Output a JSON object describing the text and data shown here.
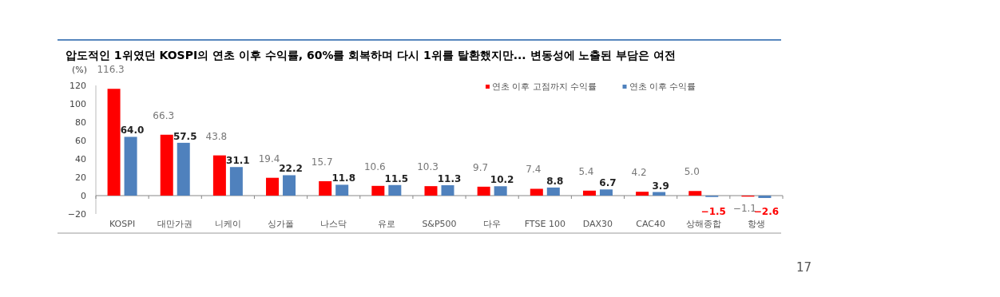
{
  "chart_data": {
    "type": "bar",
    "title": "압도적인 1위였던 KOSPI의 연초 이후 수익률, 60%를 회복하며 다시 1위를 탈환했지만... 변동성에 노출된 부담은 여전",
    "ylabel": "(%)",
    "categories": [
      "KOSPI",
      "대만가권",
      "니케이",
      "싱가폴",
      "나스닥",
      "유로",
      "S&P500",
      "다우",
      "FTSE 100",
      "DAX30",
      "CAC40",
      "상해종합",
      "항생"
    ],
    "series": [
      {
        "name": "연초 이후 고점까지 수익률",
        "color": "#ff0000",
        "values": [
          116.3,
          66.3,
          43.8,
          19.4,
          15.7,
          10.6,
          10.3,
          9.7,
          7.4,
          5.4,
          4.2,
          5.0,
          -1.1
        ],
        "value_labels": [
          "116.3",
          "66.3",
          "43.8",
          "19.4",
          "15.7",
          "10.6",
          "10.3",
          "9.7",
          "7.4",
          "5.4",
          "4.2",
          "5.0",
          "−1.1"
        ]
      },
      {
        "name": "연초 이후 수익률",
        "color": "#4f81bd",
        "values": [
          64.0,
          57.5,
          31.1,
          22.2,
          11.8,
          11.5,
          11.3,
          10.2,
          8.8,
          6.7,
          3.9,
          -1.5,
          -2.6
        ],
        "value_labels": [
          "64.0",
          "57.5",
          "31.1",
          "22.2",
          "11.8",
          "11.5",
          "11.3",
          "10.2",
          "8.8",
          "6.7",
          "3.9",
          "−1.5",
          "−2.6"
        ]
      }
    ],
    "ylim": [
      -20,
      120
    ],
    "yticks": [
      -20,
      0,
      20,
      40,
      60,
      80,
      100,
      120
    ],
    "legend": "top right",
    "annotations": [
      "17"
    ]
  }
}
